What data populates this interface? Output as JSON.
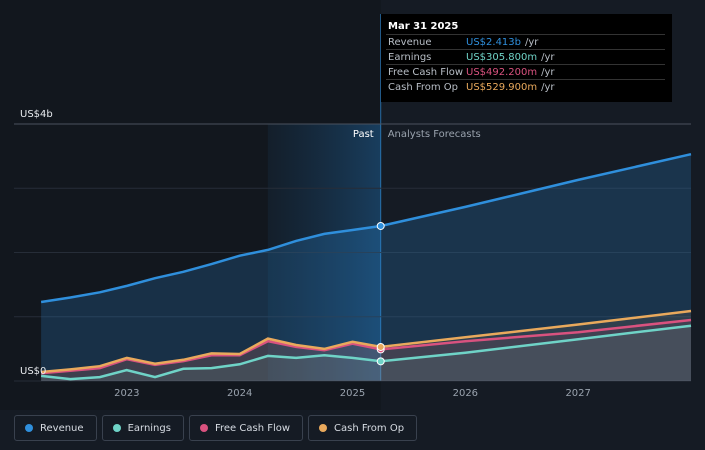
{
  "chart_data": {
    "type": "line",
    "x": [
      2022.24,
      2022.5,
      2022.76,
      2023,
      2023.25,
      2023.5,
      2023.75,
      2024,
      2024.25,
      2024.5,
      2024.75,
      2025,
      2025.25,
      2026,
      2027,
      2028
    ],
    "series": [
      {
        "name": "Revenue",
        "color": "#2f8fdc",
        "values": [
          1.23,
          1.3,
          1.38,
          1.48,
          1.6,
          1.7,
          1.82,
          1.95,
          2.04,
          2.18,
          2.29,
          2.35,
          2.413,
          2.71,
          3.13,
          3.53
        ]
      },
      {
        "name": "Earnings",
        "color": "#6fd3c7",
        "values": [
          0.08,
          0.03,
          0.06,
          0.17,
          0.06,
          0.19,
          0.2,
          0.26,
          0.39,
          0.36,
          0.4,
          0.36,
          0.306,
          0.44,
          0.65,
          0.86
        ]
      },
      {
        "name": "Free Cash Flow",
        "color": "#d9527f",
        "values": [
          0.12,
          0.16,
          0.2,
          0.34,
          0.25,
          0.31,
          0.4,
          0.4,
          0.62,
          0.53,
          0.48,
          0.58,
          0.492,
          0.62,
          0.76,
          0.95
        ]
      },
      {
        "name": "Cash From Op",
        "color": "#e9a95c",
        "values": [
          0.14,
          0.18,
          0.23,
          0.36,
          0.27,
          0.33,
          0.43,
          0.42,
          0.66,
          0.56,
          0.5,
          0.61,
          0.53,
          0.68,
          0.88,
          1.09
        ]
      }
    ],
    "xlim": [
      2022,
      2028
    ],
    "xticks": [
      2023,
      2024,
      2025,
      2026,
      2027
    ],
    "ylim": [
      0,
      4
    ],
    "yticks": [
      {
        "value": 0,
        "label": "US$0"
      },
      {
        "value": 1,
        "label": null
      },
      {
        "value": 2,
        "label": null
      },
      {
        "value": 3,
        "label": null
      },
      {
        "value": 4,
        "label": "US$4b"
      }
    ],
    "grid": true,
    "past_end": 2025.25,
    "past_label": "Past",
    "forecast_label": "Analysts Forecasts",
    "tooltip": {
      "title": "Mar 31 2025",
      "unit": "/yr",
      "value_labels": [
        "US$2.413b",
        "US$305.800m",
        "US$492.200m",
        "US$529.900m"
      ]
    },
    "legend": "bottom-left"
  }
}
